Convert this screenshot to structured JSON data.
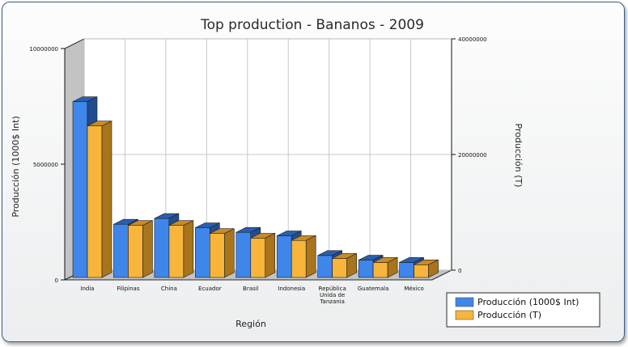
{
  "chart_data": {
    "type": "bar",
    "title": "Top production - Bananos - 2009",
    "xlabel": "Región",
    "ylabel_left": "Producción (1000$ Int)",
    "ylabel_right": "Producción (T)",
    "categories": [
      "India",
      "Filipinas",
      "China",
      "Ecuador",
      "Brasil",
      "Indonesia",
      "República Unida de Tanzania",
      "Guatemala",
      "México"
    ],
    "category_lines": [
      [
        "India"
      ],
      [
        "Filipinas"
      ],
      [
        "China"
      ],
      [
        "Ecuador"
      ],
      [
        "Brasil"
      ],
      [
        "Indonesia"
      ],
      [
        "República",
        "Unida de",
        "Tanzania"
      ],
      [
        "Guatemala"
      ],
      [
        "México"
      ]
    ],
    "left_axis": {
      "min": 0,
      "max": 10000000,
      "ticks": [
        0,
        5000000,
        10000000
      ],
      "tick_labels": [
        "0",
        "5000000",
        "10000000"
      ]
    },
    "right_axis": {
      "min": 0,
      "max": 40000000,
      "ticks": [
        0,
        20000000,
        40000000
      ],
      "tick_labels": [
        "0",
        "20000000",
        "40000000"
      ]
    },
    "series": [
      {
        "name": "Producción (1000$ Int)",
        "axis": "left",
        "color": "#3f86ea",
        "top_color": "#2a5fb0",
        "side_color": "#214c90",
        "values": [
          7600000,
          2300000,
          2550000,
          2150000,
          1950000,
          1800000,
          950000,
          750000,
          650000
        ]
      },
      {
        "name": "Producción (T)",
        "axis": "right",
        "color": "#f7b53c",
        "top_color": "#c98c24",
        "side_color": "#a8741c",
        "values": [
          26200000,
          9000000,
          9000000,
          7600000,
          6800000,
          6400000,
          3300000,
          2600000,
          2200000
        ]
      }
    ],
    "legend_position": "bottom-right",
    "grid": true
  }
}
